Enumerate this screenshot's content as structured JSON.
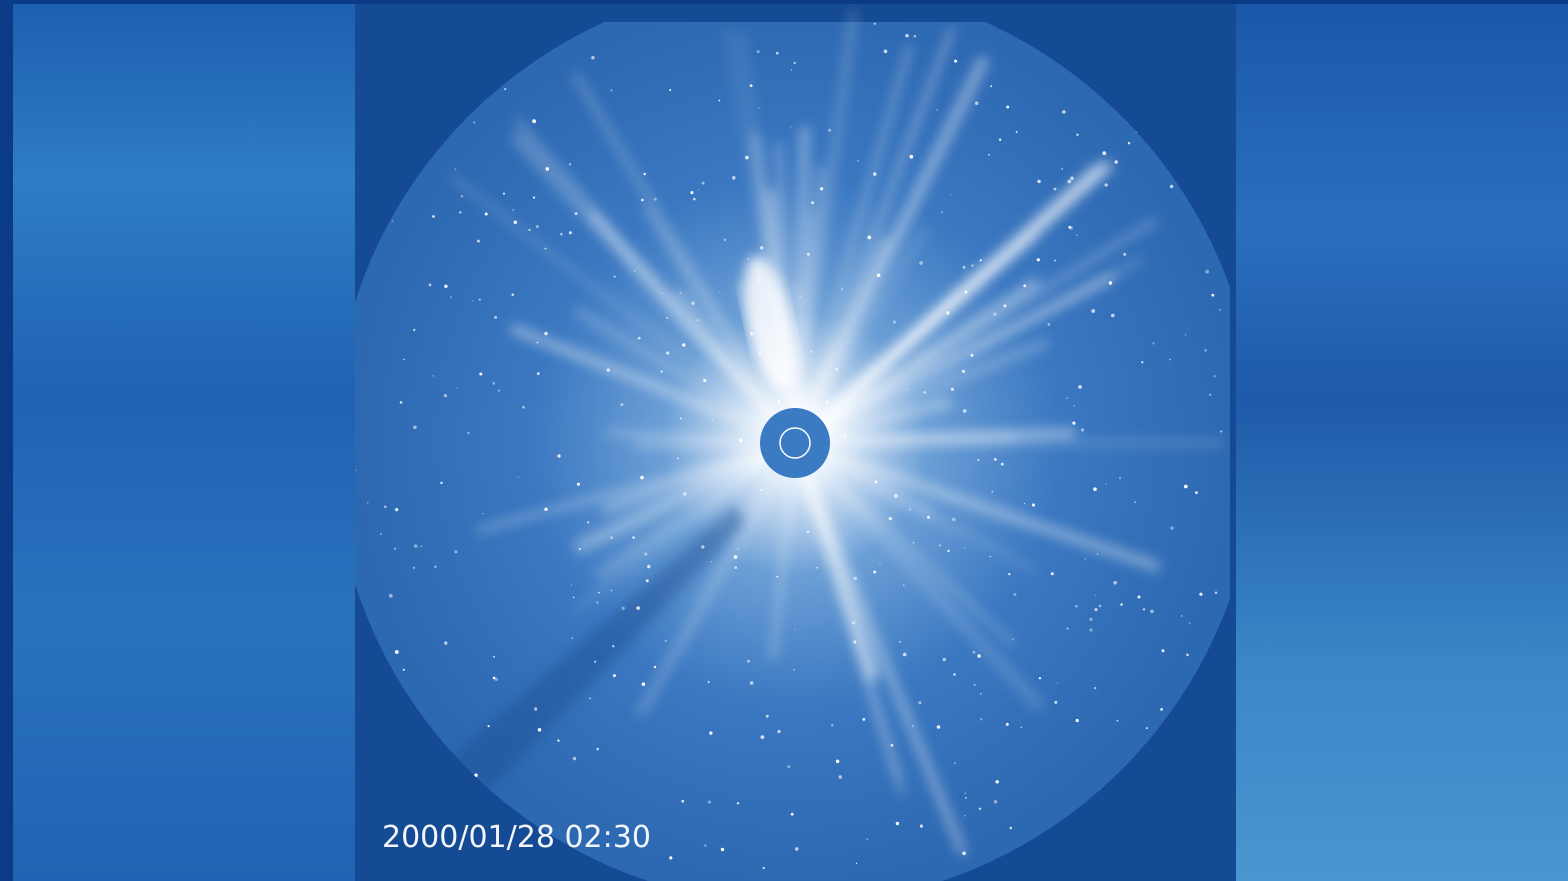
{
  "overlay": {
    "timestamp": "2000/01/28 02:30"
  }
}
